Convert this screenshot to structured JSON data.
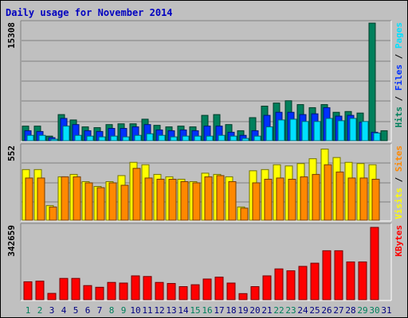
{
  "window": {
    "title": "Daily usage for November 2014"
  },
  "colors": {
    "hits": "#00805c",
    "files": "#0030ff",
    "pages": "#00e0ff",
    "visits": "#ffff00",
    "sites": "#ff8800",
    "kbytes": "#ff0000",
    "title": "#0000c0",
    "weekend_day": "#00805c",
    "weekday": "#000080"
  },
  "chart_data": [
    {
      "type": "bar",
      "title": "Daily usage for November 2014",
      "categories": [
        "1",
        "2",
        "3",
        "4",
        "5",
        "6",
        "7",
        "8",
        "9",
        "10",
        "11",
        "12",
        "13",
        "14",
        "15",
        "16",
        "17",
        "18",
        "19",
        "20",
        "21",
        "22",
        "23",
        "24",
        "25",
        "26",
        "27",
        "28",
        "29",
        "30",
        "31"
      ],
      "weekend_days": [
        "1",
        "2",
        "8",
        "9",
        "15",
        "16",
        "22",
        "23",
        "29",
        "30"
      ],
      "max_label": "15308",
      "ylim": [
        0,
        15308
      ],
      "grid": true,
      "series": [
        {
          "name": "Hits",
          "values": [
            1900,
            1900,
            600,
            3400,
            2700,
            1800,
            1700,
            2100,
            2200,
            2200,
            2800,
            2000,
            1800,
            1900,
            1800,
            3300,
            3400,
            2100,
            1300,
            3000,
            4500,
            4900,
            5200,
            4700,
            4300,
            4700,
            3700,
            3800,
            3600,
            15300,
            1300
          ]
        },
        {
          "name": "Files",
          "values": [
            1300,
            1200,
            400,
            2900,
            2100,
            1300,
            1200,
            1600,
            1600,
            1800,
            2100,
            1400,
            1300,
            1400,
            1300,
            1900,
            1900,
            1100,
            700,
            1300,
            3300,
            3700,
            3700,
            3400,
            3500,
            4300,
            3200,
            3300,
            2400,
            1100,
            0
          ]
        },
        {
          "name": "Pages",
          "values": [
            700,
            700,
            200,
            1900,
            700,
            600,
            500,
            600,
            500,
            700,
            900,
            700,
            500,
            600,
            600,
            600,
            700,
            600,
            300,
            600,
            1800,
            2700,
            2800,
            2500,
            2500,
            2900,
            2600,
            2900,
            2500,
            1000,
            0
          ]
        }
      ]
    },
    {
      "type": "bar",
      "categories": [
        "1",
        "2",
        "3",
        "4",
        "5",
        "6",
        "7",
        "8",
        "9",
        "10",
        "11",
        "12",
        "13",
        "14",
        "15",
        "16",
        "17",
        "18",
        "19",
        "20",
        "21",
        "22",
        "23",
        "24",
        "25",
        "26",
        "27",
        "28",
        "29",
        "30",
        "31"
      ],
      "max_label": "552",
      "ylim": [
        0,
        552
      ],
      "grid": true,
      "series": [
        {
          "name": "Visits",
          "values": [
            378,
            378,
            109,
            324,
            342,
            288,
            252,
            288,
            333,
            432,
            414,
            342,
            324,
            306,
            288,
            351,
            342,
            324,
            99,
            369,
            378,
            414,
            405,
            423,
            459,
            531,
            468,
            432,
            423,
            414,
            0
          ]
        },
        {
          "name": "Sites",
          "values": [
            315,
            315,
            99,
            324,
            324,
            279,
            243,
            279,
            261,
            387,
            315,
            306,
            306,
            288,
            279,
            324,
            333,
            288,
            90,
            279,
            306,
            315,
            306,
            324,
            342,
            414,
            360,
            315,
            315,
            306,
            0
          ]
        }
      ]
    },
    {
      "type": "bar",
      "categories": [
        "1",
        "2",
        "3",
        "4",
        "5",
        "6",
        "7",
        "8",
        "9",
        "10",
        "11",
        "12",
        "13",
        "14",
        "15",
        "16",
        "17",
        "18",
        "19",
        "20",
        "21",
        "22",
        "23",
        "24",
        "25",
        "26",
        "27",
        "28",
        "29",
        "30",
        "31"
      ],
      "max_label": "342659",
      "ylim": [
        0,
        342659
      ],
      "grid": false,
      "series": [
        {
          "name": "KBytes",
          "values": [
            85000,
            88000,
            30000,
            101000,
            101000,
            67000,
            59000,
            82000,
            79000,
            113000,
            110000,
            82000,
            77000,
            62000,
            71000,
            98000,
            107000,
            79000,
            29000,
            62000,
            113000,
            146000,
            137000,
            158000,
            173000,
            232000,
            232000,
            179000,
            179000,
            342659,
            0
          ]
        }
      ]
    }
  ]
}
